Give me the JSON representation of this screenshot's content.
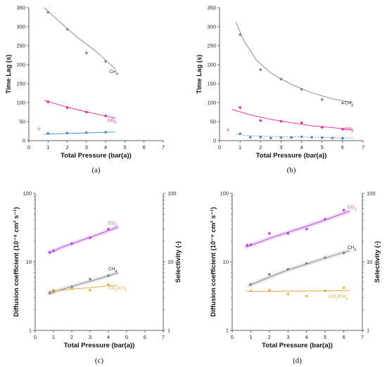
{
  "chart_data": [
    {
      "type": "scatter",
      "panel_label": "(a)",
      "xlabel": "Total Pressure (bar(a))",
      "ylabel": "Time Lag (s)",
      "xlim": [
        0,
        7
      ],
      "ylim": [
        0,
        350
      ],
      "xticks": [
        "0",
        "1",
        "2",
        "3",
        "4",
        "5",
        "6",
        "7"
      ],
      "yticks": [
        "0",
        "50",
        "100",
        "150",
        "200",
        "250",
        "300",
        "350"
      ],
      "grid": false,
      "series": [
        {
          "name": "CH4",
          "color": "#808080",
          "x": [
            1,
            2,
            3,
            4
          ],
          "y": [
            338,
            293,
            231,
            209
          ]
        },
        {
          "name": "CO2",
          "color": "#ee1d9a",
          "x": [
            1,
            2,
            3,
            4
          ],
          "y": [
            102,
            87,
            75,
            65
          ]
        },
        {
          "name": "θ",
          "color": "#4a86c8",
          "x": [
            1,
            2,
            3,
            4
          ],
          "y": [
            19,
            20,
            21,
            22
          ]
        }
      ]
    },
    {
      "type": "scatter",
      "panel_label": "(b)",
      "xlabel": "Total Pressure (bar(a))",
      "ylabel": "Time Lag (s)",
      "xlim": [
        0,
        7
      ],
      "ylim": [
        0,
        350
      ],
      "xticks": [
        "0",
        "1",
        "2",
        "3",
        "4",
        "5",
        "6",
        "7"
      ],
      "yticks": [
        "0",
        "50",
        "100",
        "150",
        "200",
        "250",
        "300",
        "350"
      ],
      "grid": false,
      "series": [
        {
          "name": "CH4",
          "color": "#808080",
          "x": [
            1,
            2,
            3,
            4,
            5,
            6
          ],
          "y": [
            279,
            187,
            162,
            135,
            108,
            99
          ]
        },
        {
          "name": "CO2",
          "color": "#ee1d9a",
          "x": [
            1,
            2,
            3,
            4,
            5,
            6
          ],
          "y": [
            87,
            53,
            51,
            47,
            35,
            30
          ]
        },
        {
          "name": "θ",
          "color": "#4a86c8",
          "x": [
            1,
            1.5,
            2,
            2.5,
            3,
            3.5,
            4,
            4.5,
            5,
            5.5,
            6
          ],
          "y": [
            18,
            9,
            9,
            7,
            8,
            8,
            10,
            9,
            8,
            7,
            6
          ]
        }
      ]
    },
    {
      "type": "scatter",
      "panel_label": "(c)",
      "xlabel": "Total Pressure (bar(a))",
      "ylabel": "Diffusion coefficient (10⁻⁸ cm² s⁻¹)",
      "ylabel_right": "Selectivity (-)",
      "xlim": [
        0,
        7
      ],
      "ylim": [
        1,
        100
      ],
      "yscale": "log",
      "xticks": [
        "0",
        "1",
        "2",
        "3",
        "4",
        "5",
        "6",
        "7"
      ],
      "yticks": [
        "1",
        "10",
        "100"
      ],
      "grid": false,
      "series": [
        {
          "name": "CO2",
          "color": "#b040e0",
          "x": [
            0.8,
            1,
            2,
            3,
            4
          ],
          "y": [
            13.8,
            14.5,
            18.5,
            22.5,
            30
          ]
        },
        {
          "name": "CH4",
          "color": "#808080",
          "x": [
            0.8,
            1,
            2,
            3,
            4
          ],
          "y": [
            3.5,
            3.8,
            4.3,
            5.6,
            6.3
          ]
        },
        {
          "name": "CO2/CH4",
          "color": "#e8a42a",
          "x": [
            1,
            2,
            3,
            4
          ],
          "y": [
            3.6,
            4.1,
            3.9,
            4.7
          ]
        }
      ]
    },
    {
      "type": "scatter",
      "panel_label": "(d)",
      "xlabel": "Total Pressure (bar(a))",
      "ylabel": "Diffusion coefficient (10⁻⁸ cm² s⁻¹)",
      "ylabel_right": "Selectivity (-)",
      "xlim": [
        0,
        7
      ],
      "ylim": [
        1,
        100
      ],
      "yscale": "log",
      "xticks": [
        "0",
        "1",
        "2",
        "3",
        "4",
        "5",
        "6",
        "7"
      ],
      "yticks": [
        "1",
        "10",
        "100"
      ],
      "grid": false,
      "series": [
        {
          "name": "CO2",
          "color": "#b040e0",
          "x": [
            0.8,
            1,
            2,
            3,
            4,
            5,
            6
          ],
          "y": [
            17.5,
            17.8,
            26,
            26,
            30,
            42,
            57
          ]
        },
        {
          "name": "CH4",
          "color": "#808080",
          "x": [
            1,
            2,
            3,
            4,
            5,
            6
          ],
          "y": [
            4.7,
            6.6,
            7.8,
            9.5,
            11.5,
            13.5
          ]
        },
        {
          "name": "CO2/CH4",
          "color": "#e8a42a",
          "x": [
            1,
            2,
            3,
            4,
            5,
            6
          ],
          "y": [
            3.8,
            3.9,
            3.4,
            3.2,
            3.8,
            4.2
          ]
        }
      ]
    }
  ]
}
